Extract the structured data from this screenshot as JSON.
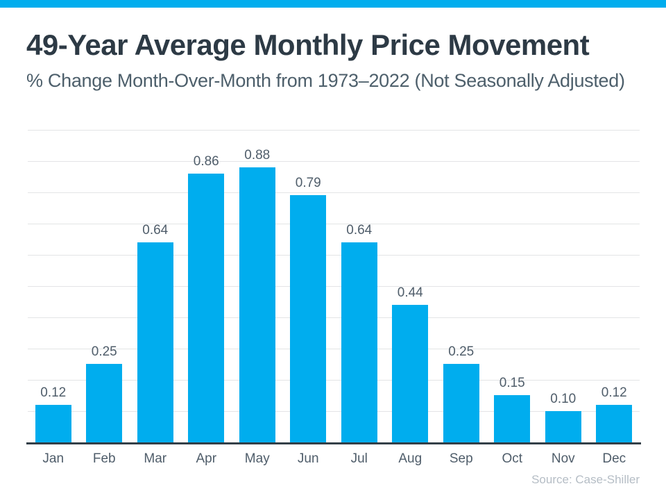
{
  "chart_data": {
    "type": "bar",
    "title": "49-Year Average Monthly Price Movement",
    "subtitle": "% Change Month-Over-Month from 1973–2022 (Not Seasonally Adjusted)",
    "categories": [
      "Jan",
      "Feb",
      "Mar",
      "Apr",
      "May",
      "Jun",
      "Jul",
      "Aug",
      "Sep",
      "Oct",
      "Nov",
      "Dec"
    ],
    "values": [
      0.12,
      0.25,
      0.64,
      0.86,
      0.88,
      0.79,
      0.64,
      0.44,
      0.25,
      0.15,
      0.1,
      0.12
    ],
    "value_labels": [
      "0.12",
      "0.25",
      "0.64",
      "0.86",
      "0.88",
      "0.79",
      "0.64",
      "0.44",
      "0.25",
      "0.15",
      "0.10",
      "0.12"
    ],
    "xlabel": "",
    "ylabel": "",
    "ylim": [
      0,
      1.0
    ],
    "gridline_step": 0.1,
    "grid": true,
    "legend": false,
    "y_axis_labels_visible": false
  },
  "source_note": "Source: Case-Shiller",
  "colors": {
    "accent": "#00ADEE",
    "title": "#2D3A45",
    "subtitle": "#4D5F6B",
    "label": "#4F5D6A",
    "grid": "#E3E4E6",
    "axis": "#333F48",
    "muted": "#B5BDC5"
  }
}
